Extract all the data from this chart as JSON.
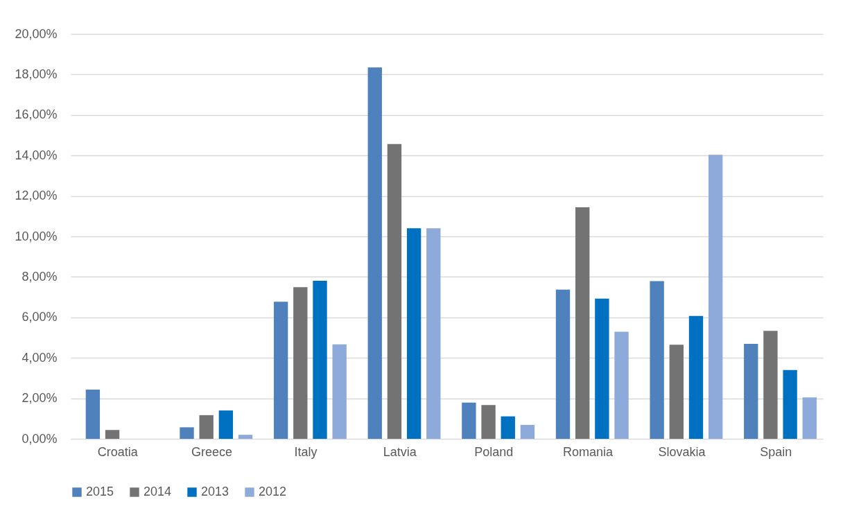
{
  "chart_data": {
    "type": "bar",
    "categories": [
      "Croatia",
      "Greece",
      "Italy",
      "Latvia",
      "Poland",
      "Romania",
      "Slovakia",
      "Spain"
    ],
    "series": [
      {
        "name": "2015",
        "color": "#4f81bd",
        "values": [
          2.43,
          0.57,
          6.77,
          18.35,
          1.79,
          7.37,
          7.79,
          4.69
        ]
      },
      {
        "name": "2014",
        "color": "#737373",
        "values": [
          0.44,
          1.17,
          7.49,
          14.56,
          1.67,
          11.44,
          4.65,
          5.33
        ]
      },
      {
        "name": "2013",
        "color": "#0070c0",
        "values": [
          null,
          1.4,
          7.81,
          10.4,
          1.11,
          6.93,
          6.07,
          3.4
        ]
      },
      {
        "name": "2012",
        "color": "#8eaadb",
        "values": [
          null,
          0.2,
          4.67,
          10.4,
          0.69,
          5.29,
          14.03,
          2.05
        ]
      }
    ],
    "ylim": [
      0,
      20
    ],
    "yticks": [
      {
        "value": 0,
        "label": "0,00%"
      },
      {
        "value": 2,
        "label": "2,00%"
      },
      {
        "value": 4,
        "label": "4,00%"
      },
      {
        "value": 6,
        "label": "6,00%"
      },
      {
        "value": 8,
        "label": "8,00%"
      },
      {
        "value": 10,
        "label": "10,00%"
      },
      {
        "value": 12,
        "label": "12,00%"
      },
      {
        "value": 14,
        "label": "14,00%"
      },
      {
        "value": 16,
        "label": "16,00%"
      },
      {
        "value": 18,
        "label": "18,00%"
      },
      {
        "value": 20,
        "label": "20,00%"
      }
    ],
    "grid": "y",
    "legend": "bottom"
  }
}
